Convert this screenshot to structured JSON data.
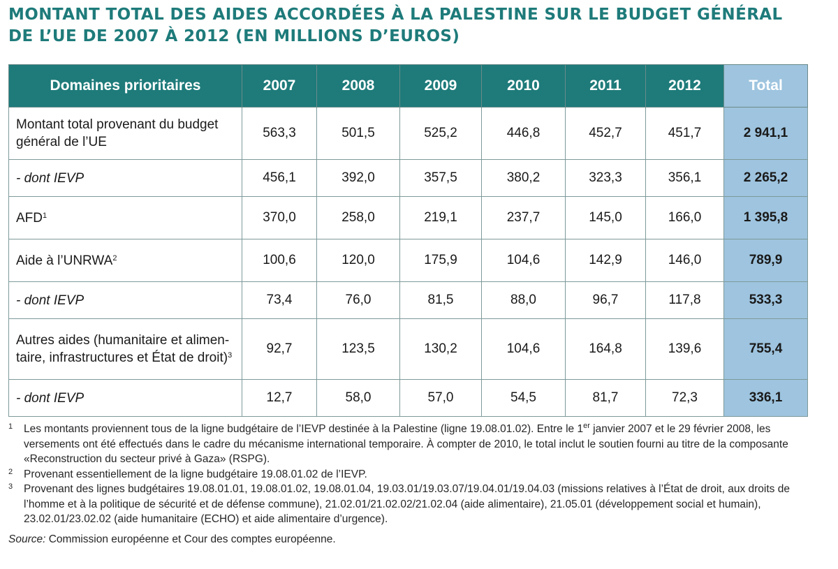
{
  "title": {
    "line1": "MONTANT TOTAL DES AIDES ACCORDÉES À LA PALESTINE SUR LE BUDGET GÉNÉRAL",
    "line2": "DE L’UE DE 2007 À 2012 (EN MILLIONS D’EUROS)"
  },
  "table": {
    "headers": [
      "Domaines prioritaires",
      "2007",
      "2008",
      "2009",
      "2010",
      "2011",
      "2012",
      "Total"
    ],
    "rows": [
      {
        "label": "Montant total provenant du budget",
        "label2": "général de l’UE",
        "sup": "",
        "values": [
          "563,3",
          "501,5",
          "525,2",
          "446,8",
          "452,7",
          "451,7"
        ],
        "total": "2 941,1"
      },
      {
        "label": "- dont IEVP",
        "sup": "",
        "values": [
          "456,1",
          "392,0",
          "357,5",
          "380,2",
          "323,3",
          "356,1"
        ],
        "total": "2 265,2"
      },
      {
        "label": "AFD",
        "sup": "1",
        "values": [
          "370,0",
          "258,0",
          "219,1",
          "237,7",
          "145,0",
          "166,0"
        ],
        "total": "1 395,8"
      },
      {
        "label": "Aide à l’UNRWA",
        "sup": "2",
        "values": [
          "100,6",
          "120,0",
          "175,9",
          "104,6",
          "142,9",
          "146,0"
        ],
        "total": "789,9"
      },
      {
        "label": "- dont IEVP",
        "sup": "",
        "values": [
          "73,4",
          "76,0",
          "81,5",
          "88,0",
          "96,7",
          "117,8"
        ],
        "total": "533,3"
      },
      {
        "label": "Autres aides (humanitaire et alimen-",
        "label2": "taire, infrastructures et État de droit)",
        "sup": "3",
        "values": [
          "92,7",
          "123,5",
          "130,2",
          "104,6",
          "164,8",
          "139,6"
        ],
        "total": "755,4"
      },
      {
        "label": "- dont IEVP",
        "sup": "",
        "values": [
          "12,7",
          "58,0",
          "57,0",
          "54,5",
          "81,7",
          "72,3"
        ],
        "total": "336,1"
      }
    ]
  },
  "notes": [
    {
      "num": "1",
      "text_a": "Les montants proviennent tous de la ligne budgétaire de l’IEVP destinée à la Palestine (ligne 19.08.01.02). Entre le 1",
      "text_sup": "er",
      "text_b": " janvier 2007 et le 29 février 2008, les versements ont été effectués dans le cadre du mécanisme international temporaire. À compter de 2010, le total inclut le soutien fourni au titre de la composante «Reconstruction du secteur privé à Gaza» (RSPG)."
    },
    {
      "num": "2",
      "text": "Provenant essentiellement de la ligne budgétaire 19.08.01.02 de l’IEVP."
    },
    {
      "num": "3",
      "text": "Provenant des lignes budgétaires 19.08.01.01, 19.08.01.02, 19.08.01.04, 19.03.01/19.03.07/19.04.01/19.04.03 (missions relatives à l’État de droit, aux droits de l’homme et à la politique de sécurité et de défense commune), 21.02.01/21.02.02/21.02.04 (aide alimentaire), 21.05.01 (développement social et humain), 23.02.01/23.02.02 (aide humanitaire (ECHO) et aide alimentaire d’urgence)."
    }
  ],
  "source": {
    "label": "Source:",
    "text": " Commission européenne et Cour des comptes européenne."
  },
  "colors": {
    "teal": "#1e7b7a",
    "total_blue": "#9ec4df"
  }
}
